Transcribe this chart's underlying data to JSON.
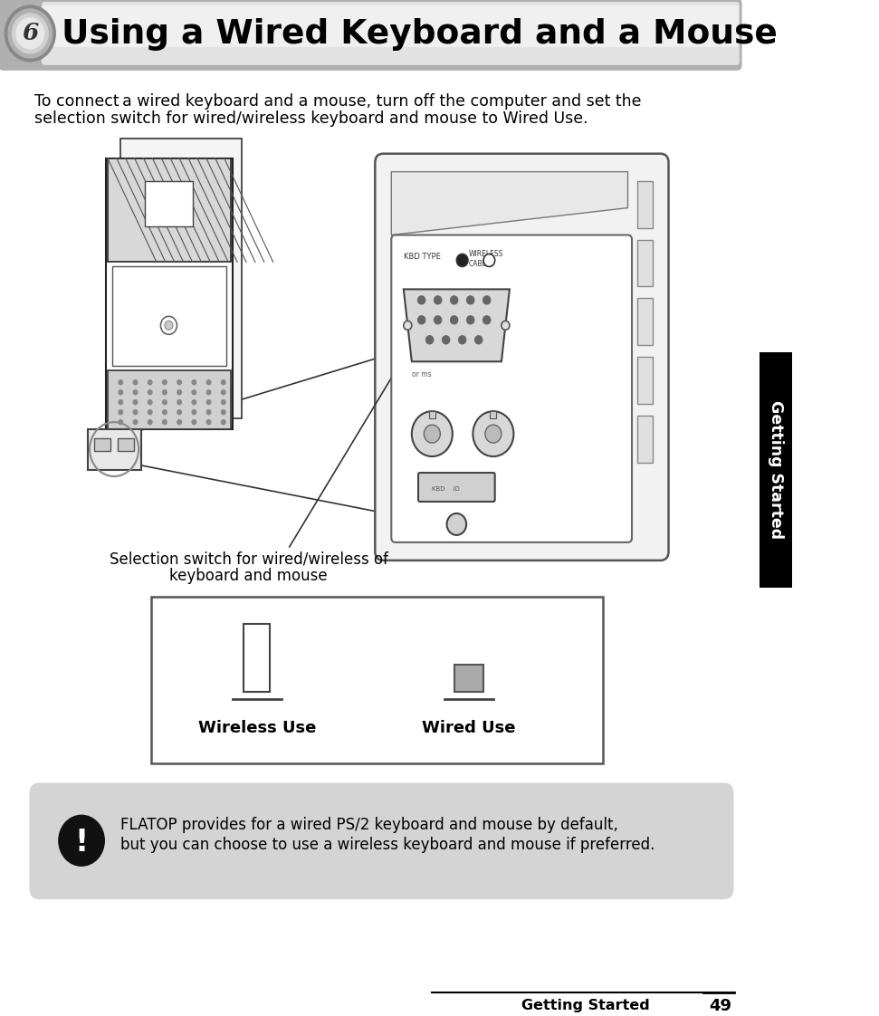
{
  "title": "Using a Wired Keyboard and a Mouse",
  "chapter_num": "6",
  "body_text_1": "To connect a wired keyboard and a mouse, turn off the computer and set the",
  "body_text_2": "selection switch for wired/wireless keyboard and mouse to Wired Use.",
  "label_text_1": "Selection switch for wired/wireless of",
  "label_text_2": "keyboard and mouse",
  "wireless_label": "Wireless Use",
  "wired_label": "Wired Use",
  "note_text_1": "FLATOP provides for a wired PS/2 keyboard and mouse by default,",
  "note_text_2": "but you can choose to use a wireless keyboard and mouse if preferred.",
  "sidebar_text": "Getting Started",
  "footer_text": "Getting Started",
  "page_num": "49",
  "bg_color": "#ffffff",
  "sidebar_bg": "#000000",
  "sidebar_text_color": "#ffffff",
  "note_bg": "#d4d4d4",
  "switch_box_border": "#555555",
  "switch_wireless_fill": "#ffffff",
  "switch_wired_fill": "#aaaaaa"
}
